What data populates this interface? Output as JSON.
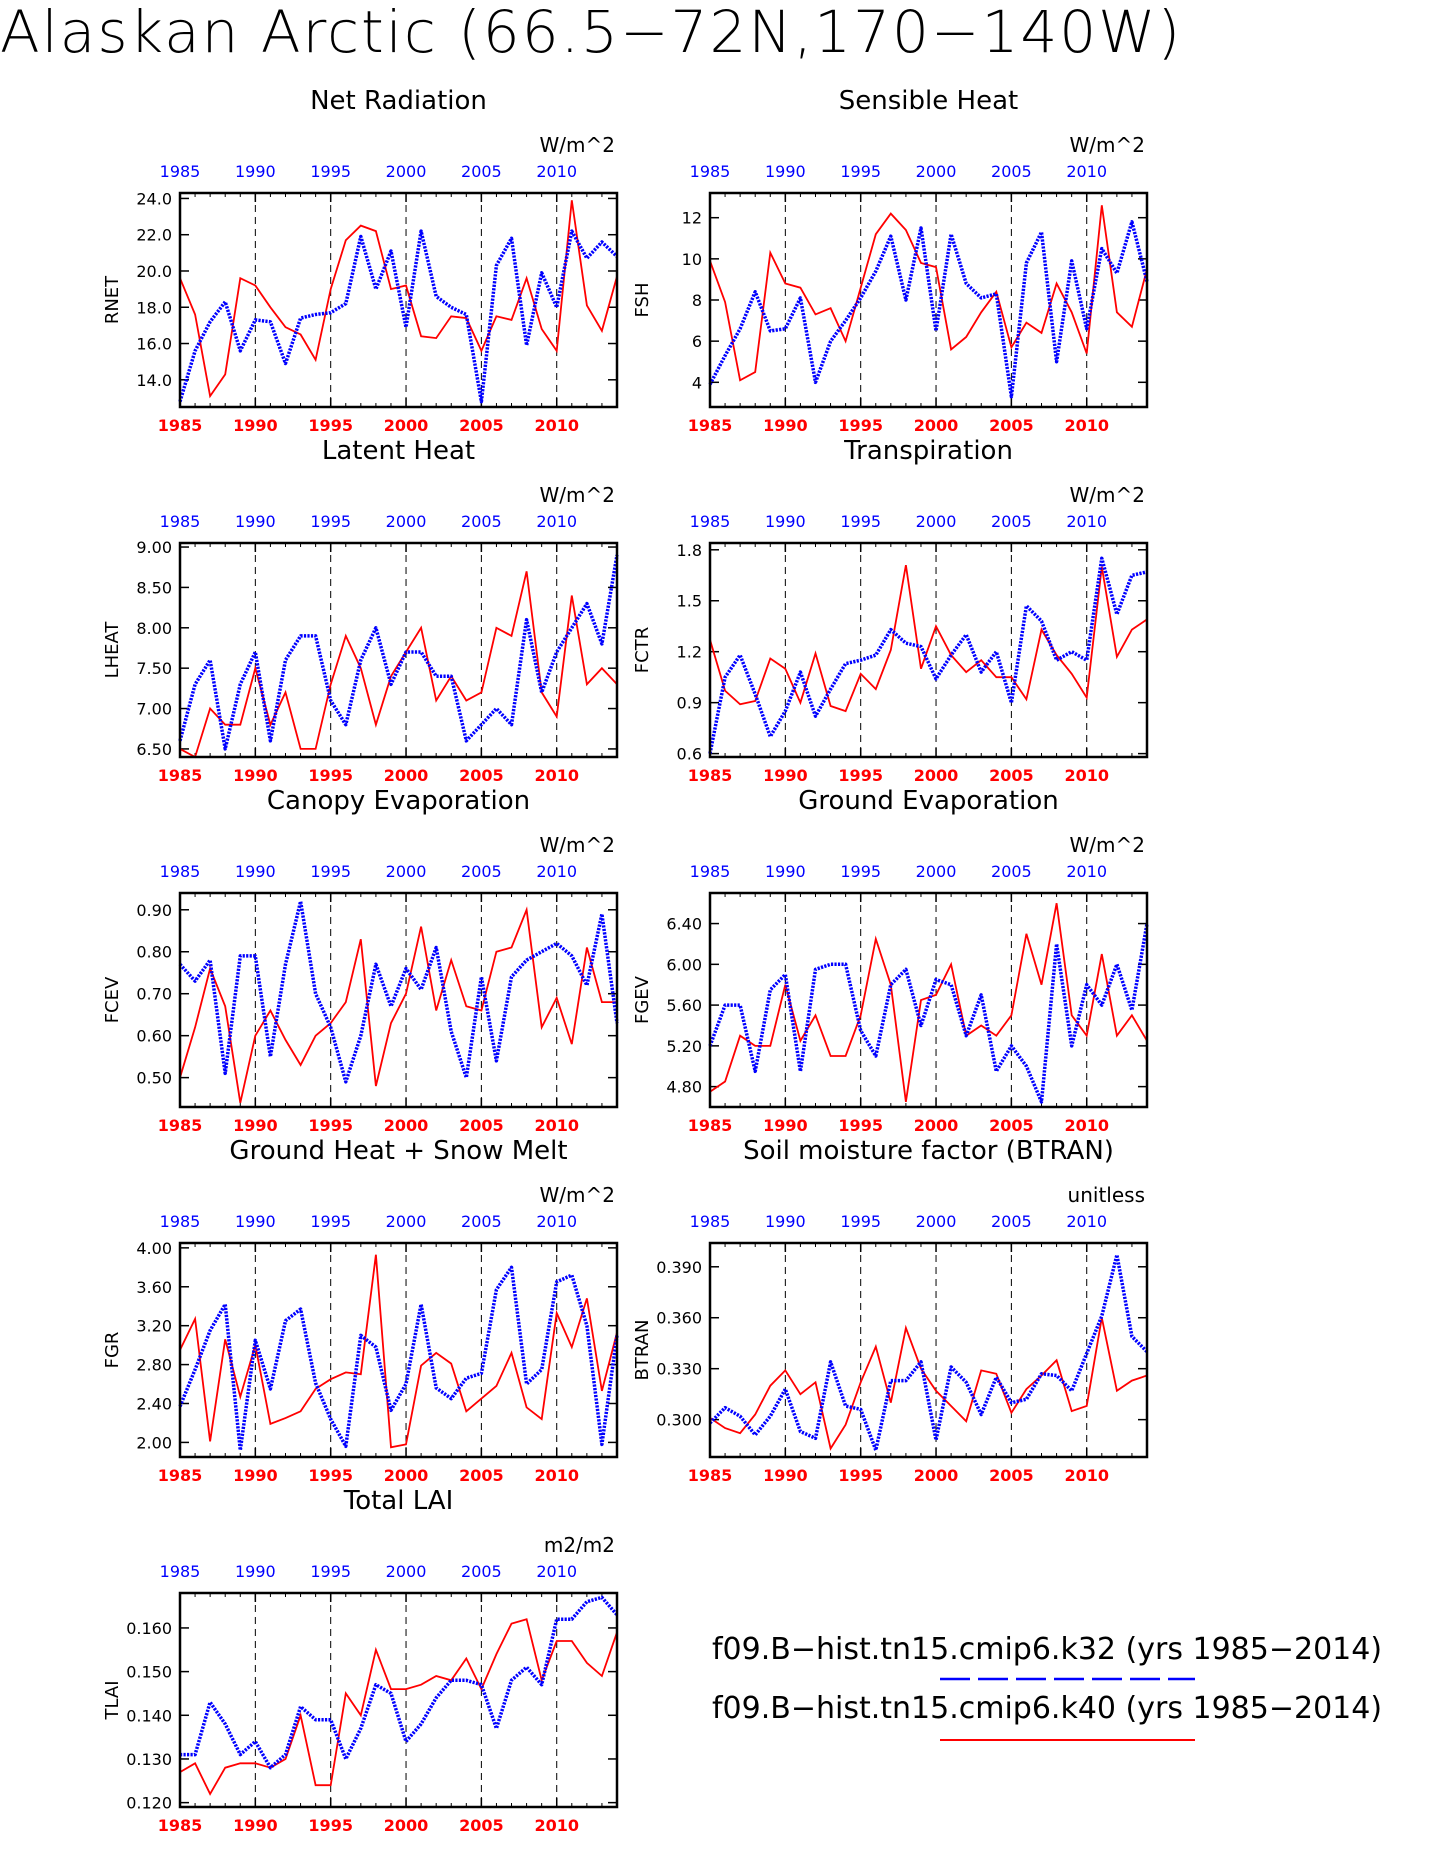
{
  "title": "Alaskan Arctic (66.5−72N,170−140W)",
  "colors": {
    "k32": "#0000ff",
    "k40": "#ff0000"
  },
  "legend": [
    {
      "label": "f09.B−hist.tn15.cmip6.k32 (yrs 1985−2014)",
      "color": "#0000ff",
      "style": "dashed"
    },
    {
      "label": "f09.B−hist.tn15.cmip6.k40 (yrs 1985−2014)",
      "color": "#ff0000",
      "style": "solid"
    }
  ],
  "chart_data": [
    {
      "type": "line",
      "title": "Net Radiation",
      "units": "W/m^2",
      "ylabel": "RNET",
      "x": [
        1985,
        1986,
        1987,
        1988,
        1989,
        1990,
        1991,
        1992,
        1993,
        1994,
        1995,
        1996,
        1997,
        1998,
        1999,
        2000,
        2001,
        2002,
        2003,
        2004,
        2005,
        2006,
        2007,
        2008,
        2009,
        2010,
        2011,
        2012,
        2013,
        2014
      ],
      "xticks": [
        "1985",
        "1990",
        "1995",
        "2000",
        "2005",
        "2010"
      ],
      "ylim": [
        12.5,
        24.3
      ],
      "yticks": [
        "14.0",
        "16.0",
        "18.0",
        "20.0",
        "22.0",
        "24.0"
      ],
      "series": [
        {
          "name": "k32",
          "values": [
            12.8,
            15.6,
            17.2,
            18.3,
            15.6,
            17.3,
            17.2,
            14.9,
            17.4,
            17.6,
            17.7,
            18.2,
            21.9,
            19.0,
            21.1,
            16.9,
            22.2,
            18.6,
            18.0,
            17.6,
            12.8,
            20.3,
            21.8,
            15.9,
            19.9,
            18.0,
            22.2,
            20.7,
            21.6,
            20.8
          ]
        },
        {
          "name": "k40",
          "values": [
            19.6,
            17.6,
            13.1,
            14.3,
            19.6,
            19.2,
            18.0,
            16.9,
            16.5,
            15.1,
            19.0,
            21.7,
            22.5,
            22.2,
            19.0,
            19.2,
            16.4,
            16.3,
            17.5,
            17.4,
            15.6,
            17.5,
            17.3,
            19.6,
            16.8,
            15.6,
            23.9,
            18.1,
            16.7,
            19.7
          ]
        }
      ]
    },
    {
      "type": "line",
      "title": "Sensible Heat",
      "units": "W/m^2",
      "ylabel": "FSH",
      "x": [
        1985,
        1986,
        1987,
        1988,
        1989,
        1990,
        1991,
        1992,
        1993,
        1994,
        1995,
        1996,
        1997,
        1998,
        1999,
        2000,
        2001,
        2002,
        2003,
        2004,
        2005,
        2006,
        2007,
        2008,
        2009,
        2010,
        2011,
        2012,
        2013,
        2014
      ],
      "xticks": [
        "1985",
        "1990",
        "1995",
        "2000",
        "2005",
        "2010"
      ],
      "ylim": [
        2.8,
        13.2
      ],
      "yticks": [
        "4",
        "6",
        "8",
        "10",
        "12"
      ],
      "series": [
        {
          "name": "k32",
          "values": [
            3.9,
            5.3,
            6.6,
            8.4,
            6.5,
            6.6,
            8.1,
            4.0,
            6.0,
            7.0,
            8.1,
            9.4,
            11.1,
            8.0,
            11.5,
            6.5,
            11.2,
            8.8,
            8.1,
            8.3,
            3.3,
            9.8,
            11.3,
            5.0,
            9.9,
            6.6,
            10.5,
            9.3,
            11.8,
            8.9
          ]
        },
        {
          "name": "k40",
          "values": [
            9.9,
            7.9,
            4.1,
            4.5,
            10.3,
            8.8,
            8.6,
            7.3,
            7.6,
            6.0,
            8.6,
            11.2,
            12.2,
            11.4,
            9.8,
            9.6,
            5.6,
            6.2,
            7.4,
            8.4,
            5.7,
            6.9,
            6.4,
            8.8,
            7.4,
            5.4,
            12.6,
            7.4,
            6.7,
            9.5
          ]
        }
      ]
    },
    {
      "type": "line",
      "title": "Latent Heat",
      "units": "W/m^2",
      "ylabel": "LHEAT",
      "x": [
        1985,
        1986,
        1987,
        1988,
        1989,
        1990,
        1991,
        1992,
        1993,
        1994,
        1995,
        1996,
        1997,
        1998,
        1999,
        2000,
        2001,
        2002,
        2003,
        2004,
        2005,
        2006,
        2007,
        2008,
        2009,
        2010,
        2011,
        2012,
        2013,
        2014
      ],
      "xticks": [
        "1985",
        "1990",
        "1995",
        "2000",
        "2005",
        "2010"
      ],
      "ylim": [
        6.4,
        9.05
      ],
      "yticks": [
        "6.50",
        "7.00",
        "7.50",
        "8.00",
        "8.50",
        "9.00"
      ],
      "series": [
        {
          "name": "k32",
          "values": [
            6.6,
            7.3,
            7.6,
            6.5,
            7.3,
            7.7,
            6.6,
            7.6,
            7.9,
            7.9,
            7.1,
            6.8,
            7.6,
            8.0,
            7.3,
            7.7,
            7.7,
            7.4,
            7.4,
            6.6,
            6.8,
            7.0,
            6.8,
            8.1,
            7.2,
            7.7,
            8.0,
            8.3,
            7.8,
            8.9
          ]
        },
        {
          "name": "k40",
          "values": [
            6.5,
            6.4,
            7.0,
            6.8,
            6.8,
            7.5,
            6.8,
            7.2,
            6.5,
            6.5,
            7.3,
            7.9,
            7.5,
            6.8,
            7.4,
            7.7,
            8.0,
            7.1,
            7.4,
            7.1,
            7.2,
            8.0,
            7.9,
            8.7,
            7.2,
            6.9,
            8.4,
            7.3,
            7.5,
            7.3
          ]
        }
      ]
    },
    {
      "type": "line",
      "title": "Transpiration",
      "units": "W/m^2",
      "ylabel": "FCTR",
      "x": [
        1985,
        1986,
        1987,
        1988,
        1989,
        1990,
        1991,
        1992,
        1993,
        1994,
        1995,
        1996,
        1997,
        1998,
        1999,
        2000,
        2001,
        2002,
        2003,
        2004,
        2005,
        2006,
        2007,
        2008,
        2009,
        2010,
        2011,
        2012,
        2013,
        2014
      ],
      "xticks": [
        "1985",
        "1990",
        "1995",
        "2000",
        "2005",
        "2010"
      ],
      "ylim": [
        0.58,
        1.84
      ],
      "yticks": [
        "0.6",
        "0.9",
        "1.2",
        "1.5",
        "1.8"
      ],
      "series": [
        {
          "name": "k32",
          "values": [
            0.6,
            1.05,
            1.18,
            0.95,
            0.7,
            0.85,
            1.08,
            0.82,
            0.98,
            1.13,
            1.15,
            1.18,
            1.33,
            1.25,
            1.23,
            1.04,
            1.18,
            1.3,
            1.08,
            1.2,
            0.9,
            1.47,
            1.38,
            1.15,
            1.2,
            1.15,
            1.75,
            1.42,
            1.65,
            1.67
          ]
        },
        {
          "name": "k40",
          "values": [
            1.27,
            0.97,
            0.89,
            0.91,
            1.16,
            1.1,
            0.9,
            1.19,
            0.88,
            0.85,
            1.07,
            0.98,
            1.21,
            1.71,
            1.1,
            1.35,
            1.18,
            1.08,
            1.15,
            1.05,
            1.05,
            0.92,
            1.33,
            1.18,
            1.07,
            0.93,
            1.7,
            1.17,
            1.33,
            1.39
          ]
        }
      ]
    },
    {
      "type": "line",
      "title": "Canopy Evaporation",
      "units": "W/m^2",
      "ylabel": "FCEV",
      "x": [
        1985,
        1986,
        1987,
        1988,
        1989,
        1990,
        1991,
        1992,
        1993,
        1994,
        1995,
        1996,
        1997,
        1998,
        1999,
        2000,
        2001,
        2002,
        2003,
        2004,
        2005,
        2006,
        2007,
        2008,
        2009,
        2010,
        2011,
        2012,
        2013,
        2014
      ],
      "xticks": [
        "1985",
        "1990",
        "1995",
        "2000",
        "2005",
        "2010"
      ],
      "ylim": [
        0.43,
        0.94
      ],
      "yticks": [
        "0.50",
        "0.60",
        "0.70",
        "0.80",
        "0.90"
      ],
      "series": [
        {
          "name": "k32",
          "values": [
            0.77,
            0.73,
            0.78,
            0.51,
            0.79,
            0.79,
            0.55,
            0.77,
            0.92,
            0.7,
            0.62,
            0.49,
            0.6,
            0.77,
            0.67,
            0.76,
            0.71,
            0.81,
            0.61,
            0.5,
            0.74,
            0.54,
            0.74,
            0.78,
            0.8,
            0.82,
            0.79,
            0.72,
            0.89,
            0.63
          ]
        },
        {
          "name": "k40",
          "values": [
            0.5,
            0.62,
            0.76,
            0.67,
            0.44,
            0.6,
            0.66,
            0.59,
            0.53,
            0.6,
            0.63,
            0.68,
            0.83,
            0.48,
            0.63,
            0.7,
            0.86,
            0.66,
            0.78,
            0.67,
            0.66,
            0.8,
            0.81,
            0.9,
            0.62,
            0.69,
            0.58,
            0.81,
            0.68,
            0.68
          ]
        }
      ]
    },
    {
      "type": "line",
      "title": "Ground Evaporation",
      "units": "W/m^2",
      "ylabel": "FGEV",
      "x": [
        1985,
        1986,
        1987,
        1988,
        1989,
        1990,
        1991,
        1992,
        1993,
        1994,
        1995,
        1996,
        1997,
        1998,
        1999,
        2000,
        2001,
        2002,
        2003,
        2004,
        2005,
        2006,
        2007,
        2008,
        2009,
        2010,
        2011,
        2012,
        2013,
        2014
      ],
      "xticks": [
        "1985",
        "1990",
        "1995",
        "2000",
        "2005",
        "2010"
      ],
      "ylim": [
        4.6,
        6.7
      ],
      "yticks": [
        "4.80",
        "5.20",
        "5.60",
        "6.00",
        "6.40"
      ],
      "series": [
        {
          "name": "k32",
          "values": [
            5.2,
            5.6,
            5.6,
            4.95,
            5.75,
            5.9,
            4.95,
            5.95,
            6.0,
            6.0,
            5.35,
            5.1,
            5.8,
            5.95,
            5.4,
            5.85,
            5.8,
            5.3,
            5.7,
            4.95,
            5.2,
            5.0,
            4.65,
            6.2,
            5.2,
            5.8,
            5.6,
            6.0,
            5.55,
            6.4
          ]
        },
        {
          "name": "k40",
          "values": [
            4.75,
            4.85,
            5.3,
            5.2,
            5.2,
            5.8,
            5.25,
            5.5,
            5.1,
            5.1,
            5.5,
            6.25,
            5.8,
            4.65,
            5.65,
            5.7,
            6.0,
            5.3,
            5.4,
            5.3,
            5.5,
            6.3,
            5.8,
            6.6,
            5.5,
            5.3,
            6.1,
            5.3,
            5.5,
            5.25
          ]
        }
      ]
    },
    {
      "type": "line",
      "title": "Ground Heat + Snow Melt",
      "units": "W/m^2",
      "ylabel": "FGR",
      "x": [
        1985,
        1986,
        1987,
        1988,
        1989,
        1990,
        1991,
        1992,
        1993,
        1994,
        1995,
        1996,
        1997,
        1998,
        1999,
        2000,
        2001,
        2002,
        2003,
        2004,
        2005,
        2006,
        2007,
        2008,
        2009,
        2010,
        2011,
        2012,
        2013,
        2014
      ],
      "xticks": [
        "1985",
        "1990",
        "1995",
        "2000",
        "2005",
        "2010"
      ],
      "ylim": [
        1.85,
        4.05
      ],
      "yticks": [
        "2.00",
        "2.40",
        "2.80",
        "3.20",
        "3.60",
        "4.00"
      ],
      "series": [
        {
          "name": "k32",
          "values": [
            2.37,
            2.75,
            3.15,
            3.42,
            1.92,
            3.05,
            2.55,
            3.25,
            3.37,
            2.61,
            2.24,
            1.96,
            3.1,
            2.98,
            2.33,
            2.6,
            3.42,
            2.56,
            2.45,
            2.66,
            2.71,
            3.57,
            3.8,
            2.6,
            2.75,
            3.65,
            3.72,
            3.2,
            1.98,
            3.1
          ]
        },
        {
          "name": "k40",
          "values": [
            2.95,
            3.27,
            2.01,
            3.06,
            2.47,
            3.0,
            2.19,
            2.25,
            2.32,
            2.55,
            2.65,
            2.72,
            2.7,
            3.93,
            1.95,
            1.98,
            2.79,
            2.92,
            2.81,
            2.32,
            2.45,
            2.58,
            2.92,
            2.36,
            2.24,
            3.33,
            2.98,
            3.48,
            2.53,
            3.13
          ]
        }
      ]
    },
    {
      "type": "line",
      "title": "Soil moisture factor (BTRAN)",
      "units": "unitless",
      "ylabel": "BTRAN",
      "x": [
        1985,
        1986,
        1987,
        1988,
        1989,
        1990,
        1991,
        1992,
        1993,
        1994,
        1995,
        1996,
        1997,
        1998,
        1999,
        2000,
        2001,
        2002,
        2003,
        2004,
        2005,
        2006,
        2007,
        2008,
        2009,
        2010,
        2011,
        2012,
        2013,
        2014
      ],
      "xticks": [
        "1985",
        "1990",
        "1995",
        "2000",
        "2005",
        "2010"
      ],
      "ylim": [
        0.278,
        0.404
      ],
      "yticks": [
        "0.300",
        "0.330",
        "0.360",
        "0.390"
      ],
      "series": [
        {
          "name": "k32",
          "values": [
            0.298,
            0.307,
            0.302,
            0.291,
            0.302,
            0.318,
            0.293,
            0.289,
            0.334,
            0.308,
            0.306,
            0.282,
            0.323,
            0.323,
            0.334,
            0.288,
            0.331,
            0.322,
            0.303,
            0.325,
            0.31,
            0.312,
            0.327,
            0.326,
            0.317,
            0.339,
            0.361,
            0.397,
            0.349,
            0.34
          ]
        },
        {
          "name": "k40",
          "values": [
            0.301,
            0.295,
            0.292,
            0.303,
            0.32,
            0.329,
            0.315,
            0.322,
            0.283,
            0.297,
            0.322,
            0.343,
            0.31,
            0.354,
            0.33,
            0.317,
            0.308,
            0.299,
            0.329,
            0.327,
            0.304,
            0.318,
            0.326,
            0.335,
            0.305,
            0.308,
            0.36,
            0.317,
            0.323,
            0.326
          ]
        }
      ]
    },
    {
      "type": "line",
      "title": "Total LAI",
      "units": "m2/m2",
      "ylabel": "TLAI",
      "x": [
        1985,
        1986,
        1987,
        1988,
        1989,
        1990,
        1991,
        1992,
        1993,
        1994,
        1995,
        1996,
        1997,
        1998,
        1999,
        2000,
        2001,
        2002,
        2003,
        2004,
        2005,
        2006,
        2007,
        2008,
        2009,
        2010,
        2011,
        2012,
        2013,
        2014
      ],
      "xticks": [
        "1985",
        "1990",
        "1995",
        "2000",
        "2005",
        "2010"
      ],
      "ylim": [
        0.119,
        0.168
      ],
      "yticks": [
        "0.120",
        "0.130",
        "0.140",
        "0.150",
        "0.160"
      ],
      "series": [
        {
          "name": "k32",
          "values": [
            0.131,
            0.131,
            0.143,
            0.138,
            0.131,
            0.134,
            0.128,
            0.131,
            0.142,
            0.139,
            0.139,
            0.13,
            0.137,
            0.147,
            0.145,
            0.134,
            0.138,
            0.144,
            0.148,
            0.148,
            0.147,
            0.137,
            0.148,
            0.151,
            0.147,
            0.162,
            0.162,
            0.166,
            0.167,
            0.163
          ]
        },
        {
          "name": "k40",
          "values": [
            0.127,
            0.129,
            0.122,
            0.128,
            0.129,
            0.129,
            0.128,
            0.13,
            0.14,
            0.124,
            0.124,
            0.145,
            0.14,
            0.155,
            0.146,
            0.146,
            0.147,
            0.149,
            0.148,
            0.153,
            0.146,
            0.154,
            0.161,
            0.162,
            0.148,
            0.157,
            0.157,
            0.152,
            0.149,
            0.159
          ]
        }
      ]
    }
  ]
}
